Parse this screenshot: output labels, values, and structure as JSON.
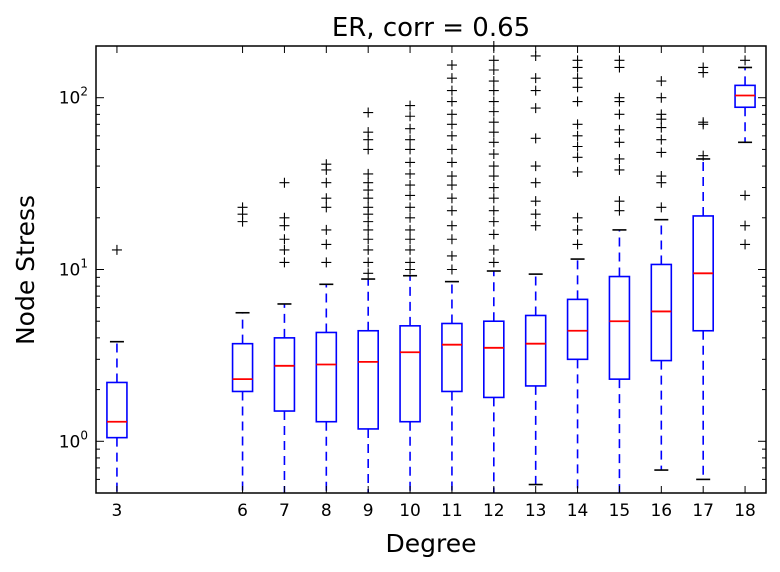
{
  "chart_data": {
    "type": "boxplot",
    "title": "ER, corr = 0.65",
    "xlabel": "Degree",
    "ylabel": "Node Stress",
    "yscale": "log",
    "ylim": [
      0.5,
      200
    ],
    "xlim": [
      2.5,
      18.5
    ],
    "y_ticks": [
      {
        "value": 1,
        "base": "10",
        "exp": "0"
      },
      {
        "value": 10,
        "base": "10",
        "exp": "1"
      },
      {
        "value": 100,
        "base": "10",
        "exp": "2"
      }
    ],
    "grid": false,
    "colors": {
      "box": "#0000ff",
      "median": "#ff0000",
      "flier": "#000000"
    },
    "boxes": [
      {
        "degree": "3",
        "whislo": 0.5,
        "q1": 1.05,
        "med": 1.3,
        "q3": 2.2,
        "whishi": 3.8,
        "fliers": [
          13
        ]
      },
      {
        "degree": "6",
        "whislo": 0.5,
        "q1": 1.95,
        "med": 2.3,
        "q3": 3.7,
        "whishi": 5.6,
        "fliers": [
          19,
          21,
          23
        ]
      },
      {
        "degree": "7",
        "whislo": 0.5,
        "q1": 1.5,
        "med": 2.75,
        "q3": 4.0,
        "whishi": 6.3,
        "fliers": [
          11,
          13,
          15,
          18,
          20,
          32
        ]
      },
      {
        "degree": "8",
        "whislo": 0.5,
        "q1": 1.3,
        "med": 2.8,
        "q3": 4.3,
        "whishi": 8.2,
        "fliers": [
          11,
          14,
          17,
          23,
          26,
          32,
          38,
          41
        ]
      },
      {
        "degree": "9",
        "whislo": 0.5,
        "q1": 1.18,
        "med": 2.9,
        "q3": 4.4,
        "whishi": 8.8,
        "fliers": [
          9.5,
          11,
          13,
          15,
          17,
          19,
          21,
          23,
          26,
          29,
          32,
          36,
          50,
          57,
          63,
          82
        ]
      },
      {
        "degree": "10",
        "whislo": 0.5,
        "q1": 1.3,
        "med": 3.3,
        "q3": 4.7,
        "whishi": 9.2,
        "fliers": [
          10,
          11,
          13,
          15,
          17,
          20,
          23,
          27,
          31,
          36,
          42,
          50,
          57,
          66,
          78,
          90
        ]
      },
      {
        "degree": "11",
        "whislo": 0.5,
        "q1": 1.95,
        "med": 3.65,
        "q3": 4.85,
        "whishi": 8.5,
        "fliers": [
          10,
          12,
          15,
          18,
          22,
          26,
          31,
          35,
          42,
          50,
          60,
          70,
          80,
          95,
          110,
          130,
          155
        ]
      },
      {
        "degree": "12",
        "whislo": 0.5,
        "q1": 1.8,
        "med": 3.5,
        "q3": 5.0,
        "whishi": 9.8,
        "fliers": [
          11,
          13,
          16,
          19,
          22,
          26,
          30,
          35,
          40,
          47,
          55,
          63,
          72,
          83,
          95,
          110,
          125,
          145,
          165,
          200
        ]
      },
      {
        "degree": "13",
        "whislo": 0.56,
        "q1": 2.1,
        "med": 3.7,
        "q3": 5.4,
        "whishi": 9.4,
        "fliers": [
          18,
          21,
          25,
          32,
          40,
          58,
          87,
          110,
          130,
          175
        ]
      },
      {
        "degree": "14",
        "whislo": 0.5,
        "q1": 3.0,
        "med": 4.4,
        "q3": 6.7,
        "whishi": 11.5,
        "fliers": [
          14,
          17,
          20,
          37,
          45,
          52,
          60,
          70,
          95,
          115,
          130,
          150,
          165
        ]
      },
      {
        "degree": "15",
        "whislo": 0.5,
        "q1": 2.3,
        "med": 5.0,
        "q3": 9.1,
        "whishi": 17,
        "fliers": [
          22,
          25,
          38,
          44,
          55,
          65,
          80,
          95,
          100,
          150,
          165
        ]
      },
      {
        "degree": "16",
        "whislo": 0.68,
        "q1": 2.95,
        "med": 5.7,
        "q3": 10.7,
        "whishi": 19.5,
        "fliers": [
          23,
          32,
          35,
          48,
          57,
          67,
          75,
          80,
          100,
          125
        ]
      },
      {
        "degree": "17",
        "whislo": 0.6,
        "q1": 4.4,
        "med": 9.5,
        "q3": 20.5,
        "whishi": 44,
        "fliers": [
          46,
          70,
          72,
          140,
          150
        ]
      },
      {
        "degree": "18",
        "whislo": 55,
        "q1": 88,
        "med": 103,
        "q3": 118,
        "whishi": 150,
        "fliers": [
          14,
          18,
          27,
          165
        ]
      }
    ]
  }
}
